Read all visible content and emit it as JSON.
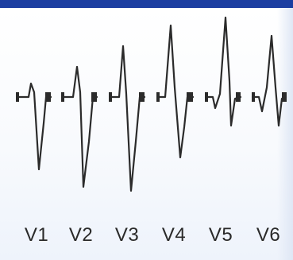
{
  "leads": [
    {
      "label": "V1"
    },
    {
      "label": "V2"
    },
    {
      "label": "V3"
    },
    {
      "label": "V4"
    },
    {
      "label": "V5"
    },
    {
      "label": "V6"
    }
  ],
  "colors": {
    "top_bar": "#1c3ea1",
    "trace": "#2b2b2b",
    "background": "#ffffff"
  }
}
